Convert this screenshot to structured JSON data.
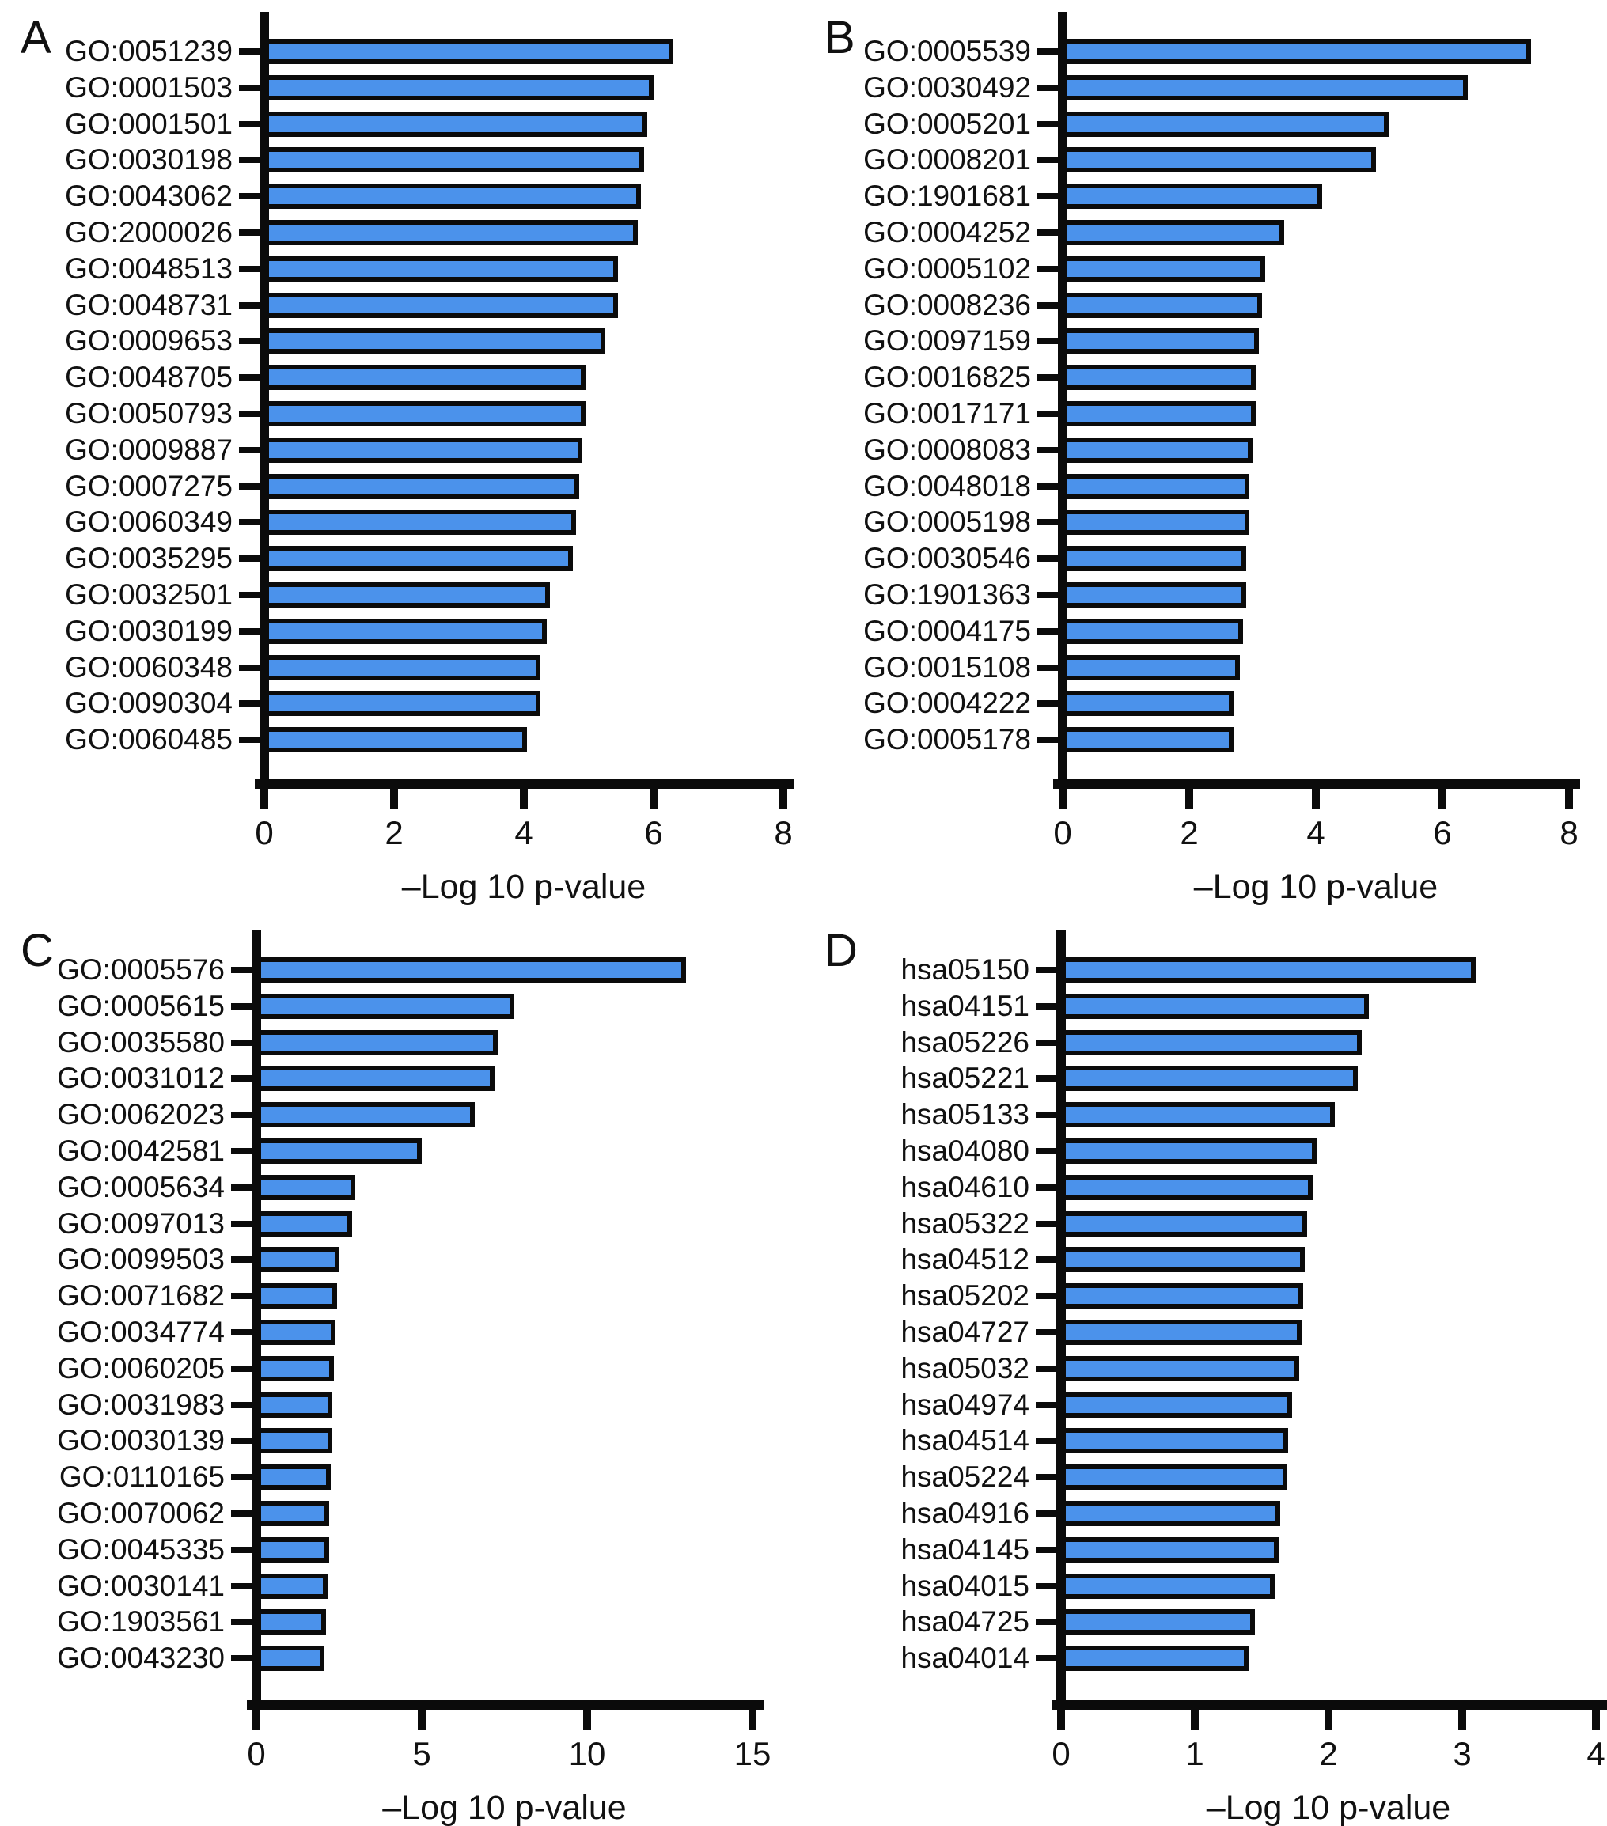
{
  "figure_background": "#ffffff",
  "colors": {
    "bar_fill": "#4b92eb",
    "bar_border": "#0b0b0b",
    "axis": "#0b0b0b",
    "text": "#111111"
  },
  "chart_data": [
    {
      "type": "bar",
      "orientation": "horizontal",
      "title": "A",
      "xlabel": "–Log 10 p-value",
      "xlim": [
        0,
        8
      ],
      "xticks": [
        0,
        2,
        4,
        6,
        8
      ],
      "grid": false,
      "categories": [
        "GO:0051239",
        "GO:0001503",
        "GO:0001501",
        "GO:0030198",
        "GO:0043062",
        "GO:2000026",
        "GO:0048513",
        "GO:0048731",
        "GO:0009653",
        "GO:0048705",
        "GO:0050793",
        "GO:0009887",
        "GO:0007275",
        "GO:0060349",
        "GO:0035295",
        "GO:0032501",
        "GO:0030199",
        "GO:0060348",
        "GO:0090304",
        "GO:0060485"
      ],
      "values": [
        6.3,
        6.0,
        5.9,
        5.85,
        5.8,
        5.75,
        5.45,
        5.45,
        5.25,
        4.95,
        4.95,
        4.9,
        4.85,
        4.8,
        4.75,
        4.4,
        4.35,
        4.25,
        4.25,
        4.05
      ]
    },
    {
      "type": "bar",
      "orientation": "horizontal",
      "title": "B",
      "xlabel": "–Log 10 p-value",
      "xlim": [
        0,
        8
      ],
      "xticks": [
        0,
        2,
        4,
        6,
        8
      ],
      "grid": false,
      "categories": [
        "GO:0005539",
        "GO:0030492",
        "GO:0005201",
        "GO:0008201",
        "GO:1901681",
        "GO:0004252",
        "GO:0005102",
        "GO:0008236",
        "GO:0097159",
        "GO:0016825",
        "GO:0017171",
        "GO:0008083",
        "GO:0048018",
        "GO:0005198",
        "GO:0030546",
        "GO:1901363",
        "GO:0004175",
        "GO:0015108",
        "GO:0004222",
        "GO:0005178"
      ],
      "values": [
        7.4,
        6.4,
        5.15,
        4.95,
        4.1,
        3.5,
        3.2,
        3.15,
        3.1,
        3.05,
        3.05,
        3.0,
        2.95,
        2.95,
        2.9,
        2.9,
        2.85,
        2.8,
        2.7,
        2.7
      ]
    },
    {
      "type": "bar",
      "orientation": "horizontal",
      "title": "C",
      "xlabel": "–Log 10 p-value",
      "xlim": [
        0,
        15
      ],
      "xticks": [
        0,
        5,
        10,
        15
      ],
      "grid": false,
      "categories": [
        "GO:0005576",
        "GO:0005615",
        "GO:0035580",
        "GO:0031012",
        "GO:0062023",
        "GO:0042581",
        "GO:0005634",
        "GO:0097013",
        "GO:0099503",
        "GO:0071682",
        "GO:0034774",
        "GO:0060205",
        "GO:0031983",
        "GO:0030139",
        "GO:0110165",
        "GO:0070062",
        "GO:0045335",
        "GO:0030141",
        "GO:1903561",
        "GO:0043230"
      ],
      "values": [
        13.0,
        7.8,
        7.3,
        7.2,
        6.6,
        5.0,
        3.0,
        2.9,
        2.5,
        2.45,
        2.4,
        2.35,
        2.3,
        2.3,
        2.25,
        2.2,
        2.2,
        2.15,
        2.1,
        2.05
      ]
    },
    {
      "type": "bar",
      "orientation": "horizontal",
      "title": "D",
      "xlabel": "–Log 10 p-value",
      "xlim": [
        0,
        4
      ],
      "xticks": [
        0,
        1,
        2,
        3,
        4
      ],
      "grid": false,
      "categories": [
        "hsa05150",
        "hsa04151",
        "hsa05226",
        "hsa05221",
        "hsa05133",
        "hsa04080",
        "hsa04610",
        "hsa05322",
        "hsa04512",
        "hsa05202",
        "hsa04727",
        "hsa05032",
        "hsa04974",
        "hsa04514",
        "hsa05224",
        "hsa04916",
        "hsa04145",
        "hsa04015",
        "hsa04725",
        "hsa04014"
      ],
      "values": [
        3.1,
        2.3,
        2.25,
        2.22,
        2.05,
        1.91,
        1.88,
        1.84,
        1.82,
        1.81,
        1.8,
        1.78,
        1.73,
        1.7,
        1.69,
        1.64,
        1.63,
        1.6,
        1.45,
        1.4
      ]
    }
  ]
}
